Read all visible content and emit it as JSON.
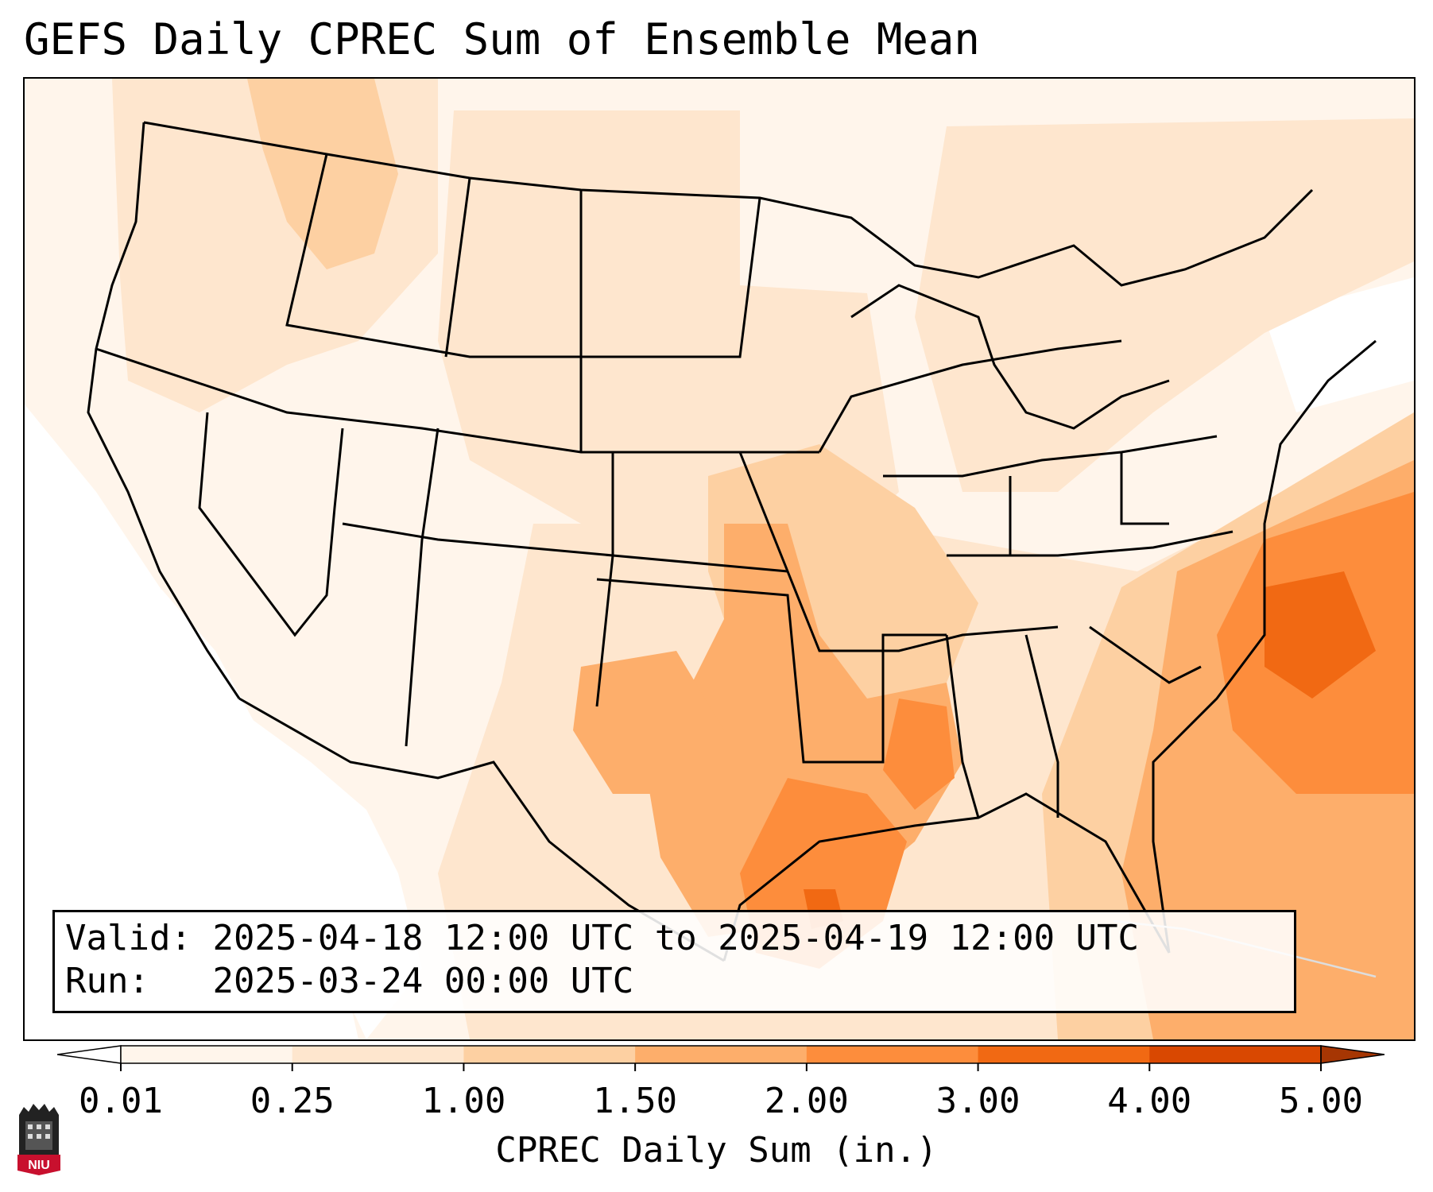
{
  "title": "GEFS Daily CPREC Sum of Ensemble Mean",
  "info": {
    "valid_label": "Valid:",
    "valid_value": "2025-04-18 12:00 UTC to 2025-04-19 12:00 UTC",
    "run_label": "Run:",
    "run_value": "2025-03-24 00:00 UTC"
  },
  "colorbar": {
    "label": "CPREC Daily Sum (in.)",
    "ticks": [
      "0.01",
      "0.25",
      "1.00",
      "1.50",
      "2.00",
      "3.00",
      "4.00",
      "5.00"
    ],
    "bins": [
      {
        "from": "0.01",
        "to": "0.25",
        "color": "#fff5eb"
      },
      {
        "from": "0.25",
        "to": "1.00",
        "color": "#fee6ce"
      },
      {
        "from": "1.00",
        "to": "1.50",
        "color": "#fdd0a2"
      },
      {
        "from": "1.50",
        "to": "2.00",
        "color": "#fdae6b"
      },
      {
        "from": "2.00",
        "to": "3.00",
        "color": "#fd8d3c"
      },
      {
        "from": "3.00",
        "to": "4.00",
        "color": "#f16913"
      },
      {
        "from": "4.00",
        "to": "5.00",
        "color": "#d94801"
      }
    ],
    "under_color": "#ffffff",
    "over_color": "#a63603",
    "extend": "both"
  },
  "map": {
    "region": "Contiguous United States",
    "borders": [
      "country",
      "state",
      "coastline"
    ]
  },
  "logo": {
    "text": "NIU",
    "color": "#c8102e"
  }
}
